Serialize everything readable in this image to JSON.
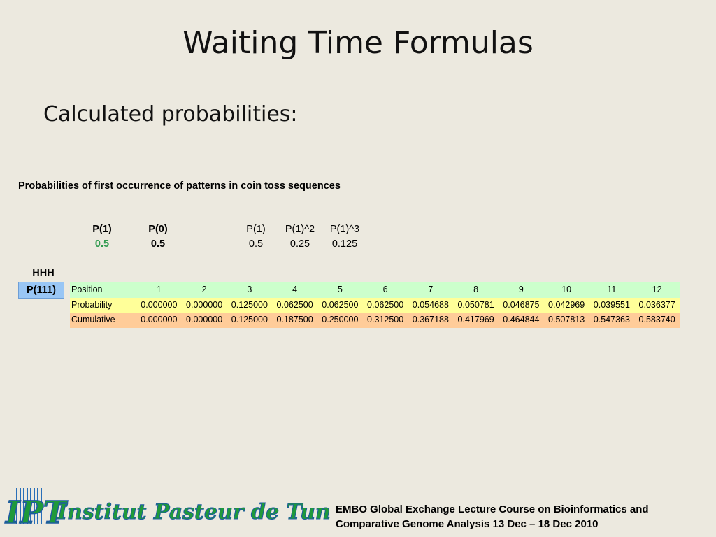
{
  "slide": {
    "title": "Waiting Time Formulas",
    "subtitle": "Calculated probabilities:",
    "caption": "Probabilities of first occurrence of patterns in coin toss sequences",
    "params": {
      "headers": [
        "P(1)",
        "P(0)"
      ],
      "values": [
        "0.5",
        "0.5"
      ]
    },
    "powers": {
      "headers": [
        "P(1)",
        "P(1)^2",
        "P(1)^3"
      ],
      "values": [
        "0.5",
        "0.25",
        "0.125"
      ]
    },
    "pattern": "HHH",
    "pattern_label": "P(111)",
    "table": {
      "rows": [
        [
          "Position",
          "1",
          "2",
          "3",
          "4",
          "5",
          "6",
          "7",
          "8",
          "9",
          "10",
          "11",
          "12"
        ],
        [
          "Probability",
          "0.000000",
          "0.000000",
          "0.125000",
          "0.062500",
          "0.062500",
          "0.062500",
          "0.054688",
          "0.050781",
          "0.046875",
          "0.042969",
          "0.039551",
          "0.036377"
        ],
        [
          "Cumulative",
          "0.000000",
          "0.000000",
          "0.125000",
          "0.187500",
          "0.250000",
          "0.312500",
          "0.367188",
          "0.417969",
          "0.464844",
          "0.507813",
          "0.547363",
          "0.583740"
        ]
      ]
    },
    "logo": {
      "initials": "IPT",
      "name": "Institut Pasteur de Tunis"
    },
    "footer": "EMBO Global Exchange Lecture Course on Bioinformatics and Comparative Genome Analysis 13 Dec – 18 Dec 2010"
  }
}
